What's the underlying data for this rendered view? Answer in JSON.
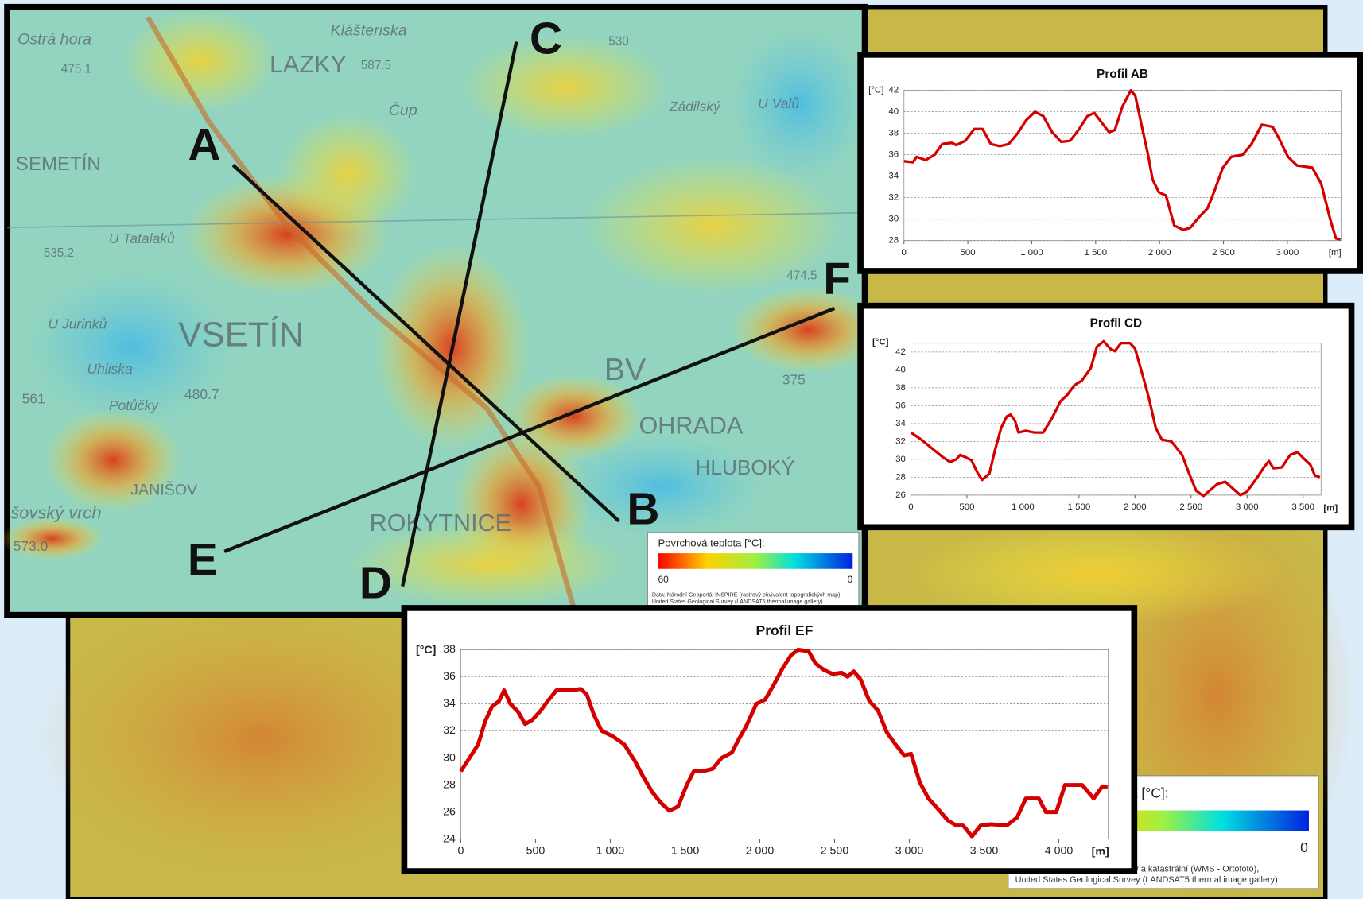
{
  "chart_data": [
    {
      "type": "line",
      "title": "Profil AB",
      "y_label": "[°C]",
      "x_label": "[m]",
      "color": "#d40000",
      "grid": true,
      "xlim": [
        0,
        3420
      ],
      "ylim": [
        28,
        42
      ],
      "xticks": [
        0,
        500,
        {
          "value": 1000,
          "label": "1 000"
        },
        {
          "value": 1500,
          "label": "1 500"
        },
        {
          "value": 2000,
          "label": "2 000"
        },
        {
          "value": 2500,
          "label": "2 500"
        },
        {
          "value": 3000,
          "label": "3 000"
        }
      ],
      "yticks": [
        28,
        30,
        32,
        34,
        36,
        38,
        40,
        42
      ],
      "x": [
        0,
        70,
        100,
        170,
        240,
        300,
        375,
        410,
        480,
        550,
        615,
        680,
        750,
        820,
        890,
        955,
        1025,
        1090,
        1160,
        1230,
        1300,
        1365,
        1435,
        1490,
        1560,
        1605,
        1650,
        1710,
        1775,
        1810,
        1860,
        1910,
        1945,
        1995,
        2050,
        2115,
        2185,
        2240,
        2310,
        2375,
        2425,
        2495,
        2560,
        2650,
        2720,
        2800,
        2885,
        2935,
        3005,
        3075,
        3195,
        3265,
        3335,
        3380,
        3415
      ],
      "values": [
        35.4,
        35.3,
        35.8,
        35.5,
        36,
        37,
        37.1,
        36.9,
        37.3,
        38.4,
        38.4,
        37,
        36.8,
        37,
        38,
        39.2,
        40,
        39.6,
        38.1,
        37.2,
        37.3,
        38.3,
        39.6,
        39.9,
        38.8,
        38.1,
        38.3,
        40.5,
        42,
        41.5,
        38.7,
        36,
        33.7,
        32.5,
        32.2,
        29.4,
        29,
        29.2,
        30.2,
        31,
        32.5,
        34.8,
        35.8,
        36,
        37,
        38.8,
        38.6,
        37.5,
        35.8,
        35,
        34.8,
        33.3,
        30,
        28.2,
        28.1
      ]
    },
    {
      "type": "line",
      "title": "Profil CD",
      "y_label": "[°C]",
      "x_label": "[m]",
      "color": "#d40000",
      "grid": true,
      "xlim": [
        0,
        3660
      ],
      "ylim": [
        26,
        43
      ],
      "xticks": [
        0,
        500,
        {
          "value": 1000,
          "label": "1 000"
        },
        {
          "value": 1500,
          "label": "1 500"
        },
        {
          "value": 2000,
          "label": "2 000"
        },
        {
          "value": 2500,
          "label": "2 500"
        },
        {
          "value": 3000,
          "label": "3 000"
        },
        {
          "value": 3500,
          "label": "3 500"
        }
      ],
      "yticks": [
        26,
        28,
        30,
        32,
        34,
        36,
        38,
        40,
        42
      ],
      "x": [
        0,
        93,
        210,
        290,
        350,
        405,
        440,
        495,
        540,
        595,
        635,
        700,
        750,
        805,
        855,
        890,
        930,
        960,
        1025,
        1100,
        1180,
        1255,
        1335,
        1395,
        1460,
        1525,
        1605,
        1660,
        1720,
        1785,
        1820,
        1875,
        1955,
        2000,
        2070,
        2125,
        2185,
        2240,
        2325,
        2420,
        2480,
        2545,
        2610,
        2675,
        2730,
        2805,
        2885,
        2940,
        3000,
        3080,
        3155,
        3195,
        3235,
        3310,
        3385,
        3450,
        3505,
        3565,
        3605,
        3650
      ],
      "values": [
        33,
        32.2,
        31,
        30.2,
        29.7,
        30,
        30.5,
        30.2,
        29.9,
        28.5,
        27.7,
        28.4,
        31,
        33.5,
        34.8,
        35,
        34.3,
        33,
        33.2,
        33,
        33,
        34.5,
        36.5,
        37.2,
        38.3,
        38.8,
        40.2,
        42.6,
        43.2,
        42.3,
        42.1,
        43,
        43,
        42.4,
        39.3,
        36.8,
        33.5,
        32.2,
        32,
        30.5,
        28.5,
        26.5,
        25.9,
        26.6,
        27.2,
        27.5,
        26.6,
        26,
        26.4,
        27.8,
        29.2,
        29.8,
        29,
        29.1,
        30.5,
        30.8,
        30.1,
        29.4,
        28.2,
        28
      ]
    },
    {
      "type": "line",
      "title": "Profil EF",
      "y_label": "[°C]",
      "x_label": "[m]",
      "color": "#d40000",
      "grid": true,
      "xlim": [
        0,
        4330
      ],
      "ylim": [
        24,
        38
      ],
      "xticks": [
        0,
        500,
        {
          "value": 1000,
          "label": "1 000"
        },
        {
          "value": 1500,
          "label": "1 500"
        },
        {
          "value": 2000,
          "label": "2 000"
        },
        {
          "value": 2500,
          "label": "2 500"
        },
        {
          "value": 3000,
          "label": "3 000"
        },
        {
          "value": 3500,
          "label": "3 500"
        },
        {
          "value": 4000,
          "label": "4 000"
        }
      ],
      "yticks": [
        24,
        26,
        28,
        30,
        32,
        34,
        36,
        38
      ],
      "x": [
        0,
        58,
        116,
        163,
        209,
        256,
        290,
        331,
        384,
        430,
        477,
        535,
        581,
        640,
        727,
        802,
        843,
        890,
        942,
        1017,
        1093,
        1163,
        1221,
        1279,
        1337,
        1395,
        1453,
        1512,
        1558,
        1616,
        1686,
        1744,
        1814,
        1860,
        1907,
        1977,
        2035,
        2093,
        2151,
        2209,
        2256,
        2326,
        2372,
        2430,
        2488,
        2547,
        2587,
        2628,
        2674,
        2733,
        2791,
        2849,
        2907,
        2965,
        3012,
        3070,
        3128,
        3186,
        3256,
        3314,
        3360,
        3419,
        3477,
        3547,
        3651,
        3721,
        3779,
        3866,
        3913,
        3983,
        4041,
        4157,
        4233,
        4291,
        4326
      ],
      "values": [
        29,
        30,
        31,
        32.7,
        33.8,
        34.2,
        35,
        34,
        33.4,
        32.5,
        32.8,
        33.5,
        34.2,
        35,
        35,
        35.1,
        34.7,
        33.2,
        32,
        31.6,
        31,
        29.8,
        28.6,
        27.5,
        26.7,
        26.1,
        26.4,
        28,
        29,
        29,
        29.2,
        30,
        30.4,
        31.4,
        32.3,
        34,
        34.3,
        35.4,
        36.6,
        37.6,
        38,
        37.9,
        37,
        36.5,
        36.2,
        36.3,
        36,
        36.4,
        35.8,
        34.2,
        33.5,
        31.9,
        31,
        30.2,
        30.3,
        28.2,
        27,
        26.3,
        25.4,
        25,
        25,
        24.2,
        25,
        25.1,
        25,
        25.6,
        27,
        27,
        26,
        26,
        28,
        28,
        27,
        27.9,
        27.8
      ]
    }
  ],
  "map": {
    "places": [
      "Ostrá hora",
      "Klášteriska",
      "LAZKY",
      "SEMETÍN",
      "VSETÍN",
      "OHRADA",
      "ROKYTNICE",
      "HLUBOKÝ",
      "JANIŠOV",
      "Zádilský",
      "U Valů",
      "Čup",
      "U Tatalaků",
      "U Jurinků",
      "Uhliska",
      "Potůčky",
      "BV",
      "šovský vrch",
      "475.1",
      "587.5",
      "530",
      "535.2",
      "480.7",
      "561",
      "474.5",
      "375",
      "573.0"
    ],
    "points": [
      "A",
      "B",
      "C",
      "D",
      "E",
      "F"
    ],
    "legend": {
      "title": "Povrchová teplota [°C]:",
      "max": "60",
      "min": "0",
      "source": [
        "Data: Národní Geoportál INSPIRE (rastrový ekvivalent topografických map),",
        "United States Geological Survey (LANDSAT5 thermal image gallery)"
      ]
    },
    "legend2": {
      "title": "a [°C]:",
      "min": "0",
      "source": [
        "ký a katastrální (WMS - Ortofoto),",
        "United States Geological Survey (LANDSAT5 thermal image gallery)"
      ]
    }
  }
}
